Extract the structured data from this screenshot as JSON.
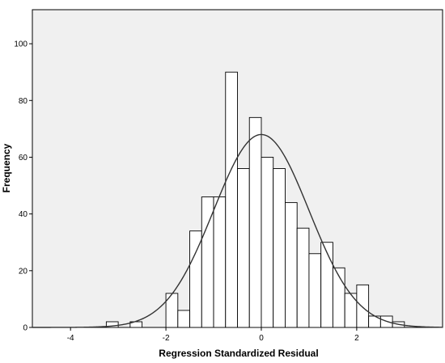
{
  "chart_data": {
    "type": "bar",
    "subtype": "histogram with normal curve",
    "xlabel": "Regression Standardized Residual",
    "ylabel": "Frequency",
    "xlim": [
      -4.8,
      3.8
    ],
    "ylim": [
      0,
      112
    ],
    "xticks": [
      -4,
      -2,
      0,
      2
    ],
    "yticks": [
      0,
      20,
      40,
      60,
      80,
      100
    ],
    "bin_width": 0.25,
    "bins": [
      {
        "x0": -3.25,
        "x1": -3.0,
        "value": 2
      },
      {
        "x0": -2.75,
        "x1": -2.5,
        "value": 2
      },
      {
        "x0": -2.0,
        "x1": -1.75,
        "value": 12
      },
      {
        "x0": -1.75,
        "x1": -1.5,
        "value": 6
      },
      {
        "x0": -1.5,
        "x1": -1.25,
        "value": 34
      },
      {
        "x0": -1.25,
        "x1": -1.0,
        "value": 46
      },
      {
        "x0": -1.0,
        "x1": -0.75,
        "value": 46
      },
      {
        "x0": -0.75,
        "x1": -0.5,
        "value": 90
      },
      {
        "x0": -0.5,
        "x1": -0.25,
        "value": 56
      },
      {
        "x0": -0.25,
        "x1": 0.0,
        "value": 74
      },
      {
        "x0": 0.0,
        "x1": 0.25,
        "value": 60
      },
      {
        "x0": 0.25,
        "x1": 0.5,
        "value": 56
      },
      {
        "x0": 0.5,
        "x1": 0.75,
        "value": 44
      },
      {
        "x0": 0.75,
        "x1": 1.0,
        "value": 35
      },
      {
        "x0": 1.0,
        "x1": 1.25,
        "value": 26
      },
      {
        "x0": 1.25,
        "x1": 1.5,
        "value": 30
      },
      {
        "x0": 1.5,
        "x1": 1.75,
        "value": 21
      },
      {
        "x0": 1.75,
        "x1": 2.0,
        "value": 12
      },
      {
        "x0": 2.0,
        "x1": 2.25,
        "value": 15
      },
      {
        "x0": 2.25,
        "x1": 2.5,
        "value": 4
      },
      {
        "x0": 2.5,
        "x1": 2.75,
        "value": 4
      },
      {
        "x0": 2.75,
        "x1": 3.0,
        "value": 2
      }
    ],
    "normal_curve": {
      "mean": 0,
      "sd": 1,
      "peak": 68
    },
    "grid": false,
    "colors": {
      "plot_background": "#f0f0f0",
      "bar_fill": "#ffffff",
      "bar_stroke": "#000000",
      "curve": "#333333"
    }
  }
}
